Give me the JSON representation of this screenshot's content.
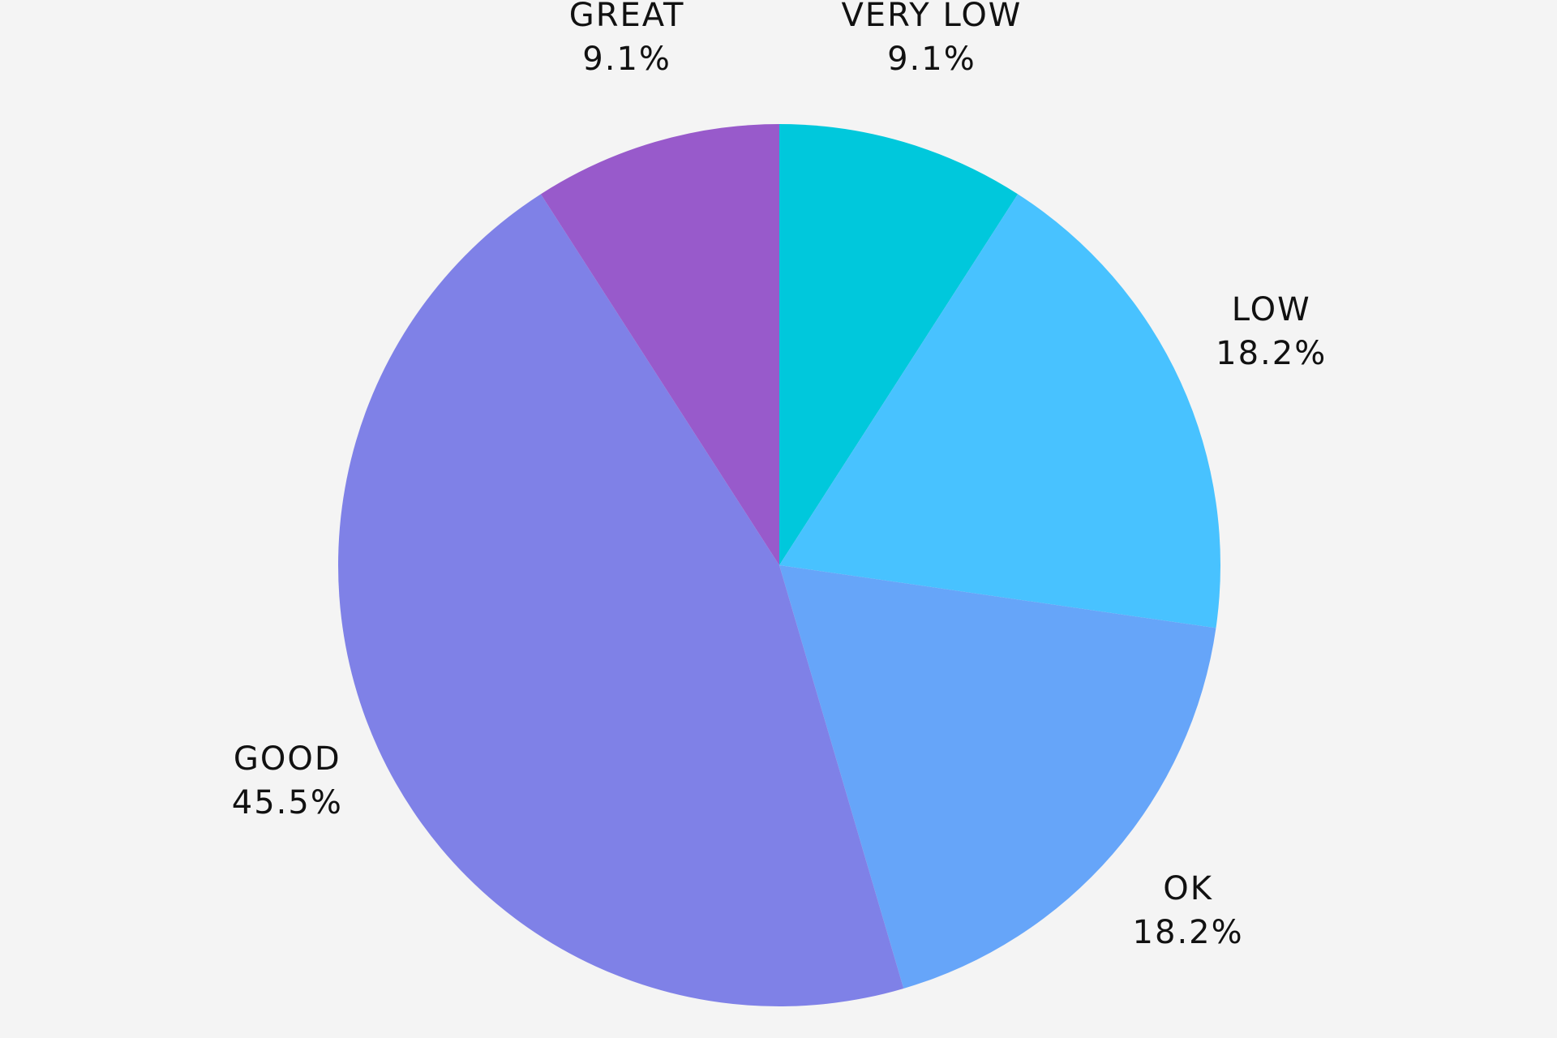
{
  "chart_data": {
    "type": "pie",
    "title": "",
    "start_angle_deg": 0,
    "direction": "clockwise",
    "slices": [
      {
        "label": "VERY LOW",
        "value": 9.1,
        "value_label": "9.1%",
        "color": "#00c8dc"
      },
      {
        "label": "LOW",
        "value": 18.2,
        "value_label": "18.2%",
        "color": "#48c2ff"
      },
      {
        "label": "OK",
        "value": 18.2,
        "value_label": "18.2%",
        "color": "#66a5f9"
      },
      {
        "label": "GOOD",
        "value": 45.5,
        "value_label": "45.5%",
        "color": "#7f81e7"
      },
      {
        "label": "GREAT",
        "value": 9.1,
        "value_label": "9.1%",
        "color": "#985acb"
      }
    ],
    "legend": "none",
    "background_color": "#f4f4f4"
  }
}
